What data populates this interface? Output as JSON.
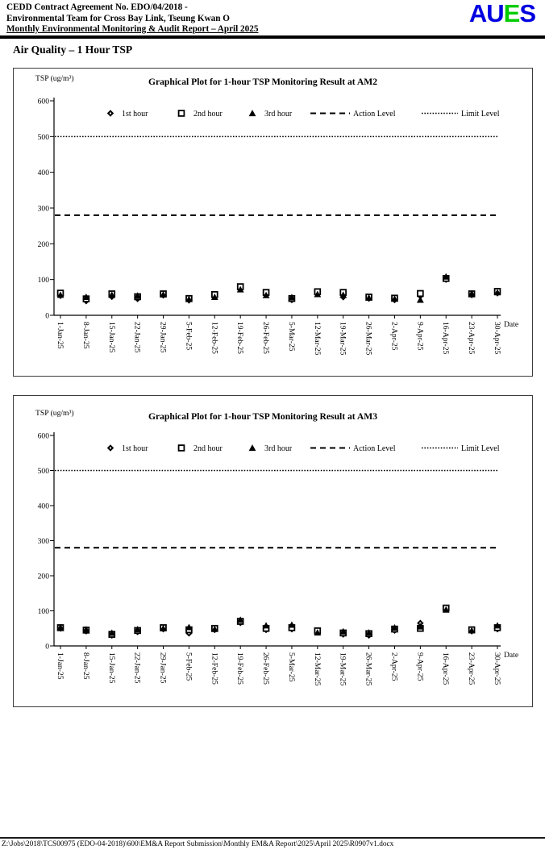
{
  "header": {
    "line1": "CEDD Contract Agreement No. EDO/04/2018 -",
    "line2": "Environmental Team for Cross Bay Link, Tseung Kwan O",
    "line3": "Monthly Environmental Monitoring & Audit Report – April 2025",
    "logo": {
      "letters": [
        {
          "char": "A",
          "color": "#0000E0"
        },
        {
          "char": "U",
          "color": "#0000E0"
        },
        {
          "char": "E",
          "color": "#00CC00"
        },
        {
          "char": "S",
          "color": "#0000E0"
        }
      ]
    }
  },
  "section_title": "Air Quality – 1 Hour TSP",
  "chart_data": [
    {
      "type": "scatter",
      "title": "Graphical Plot for 1-hour TSP Monitoring Result at AM2",
      "ylabel": "TSP (ug/m³)",
      "xlabel": "Date",
      "ylim": [
        0,
        600
      ],
      "ytick_step": 100,
      "grid": false,
      "legend_position": "top",
      "categories": [
        "1-Jan-25",
        "8-Jan-25",
        "15-Jan-25",
        "22-Jan-25",
        "29-Jan-25",
        "5-Feb-25",
        "12-Feb-25",
        "19-Feb-25",
        "26-Feb-25",
        "5-Mar-25",
        "12-Mar-25",
        "19-Mar-25",
        "26-Mar-25",
        "2-Apr-25",
        "9-Apr-25",
        "16-Apr-25",
        "23-Apr-25",
        "30-Apr-25"
      ],
      "series": [
        {
          "name": "1st hour",
          "marker": "diamond",
          "values": [
            55,
            40,
            52,
            46,
            56,
            42,
            54,
            76,
            59,
            43,
            61,
            51,
            47,
            43,
            54,
            100,
            57,
            62
          ]
        },
        {
          "name": "2nd hour",
          "marker": "square",
          "values": [
            62,
            46,
            60,
            52,
            60,
            47,
            58,
            80,
            64,
            47,
            66,
            64,
            51,
            48,
            61,
            103,
            60,
            67
          ]
        },
        {
          "name": "3rd hour",
          "marker": "triangle",
          "values": [
            57,
            51,
            57,
            55,
            58,
            45,
            51,
            72,
            56,
            50,
            59,
            57,
            49,
            46,
            43,
            108,
            61,
            64
          ]
        }
      ],
      "reference_lines": [
        {
          "name": "Action Level",
          "value": 280,
          "style": "dashed"
        },
        {
          "name": "Limit Level",
          "value": 500,
          "style": "dotted"
        }
      ]
    },
    {
      "type": "scatter",
      "title": "Graphical Plot for 1-hour TSP Monitoring Result at AM3",
      "ylabel": "TSP (ug/m³)",
      "xlabel": "Date",
      "ylim": [
        0,
        600
      ],
      "ytick_step": 100,
      "grid": false,
      "legend_position": "top",
      "categories": [
        "1-Jan-25",
        "8-Jan-25",
        "15-Jan-25",
        "22-Jan-25",
        "29-Jan-25",
        "5-Feb-25",
        "12-Feb-25",
        "19-Feb-25",
        "26-Feb-25",
        "5-Mar-25",
        "12-Mar-25",
        "19-Mar-25",
        "26-Mar-25",
        "2-Apr-25",
        "9-Apr-25",
        "16-Apr-25",
        "23-Apr-25",
        "30-Apr-25"
      ],
      "series": [
        {
          "name": "1st hour",
          "marker": "diamond",
          "values": [
            50,
            42,
            30,
            40,
            48,
            36,
            46,
            66,
            46,
            48,
            40,
            33,
            30,
            44,
            65,
            105,
            42,
            48
          ]
        },
        {
          "name": "2nd hour",
          "marker": "square",
          "values": [
            52,
            45,
            33,
            44,
            52,
            46,
            50,
            70,
            50,
            52,
            43,
            37,
            35,
            48,
            50,
            108,
            46,
            52
          ]
        },
        {
          "name": "3rd hour",
          "marker": "triangle",
          "values": [
            53,
            47,
            37,
            47,
            50,
            53,
            48,
            74,
            58,
            60,
            38,
            41,
            38,
            52,
            55,
            103,
            44,
            58
          ]
        }
      ],
      "reference_lines": [
        {
          "name": "Action Level",
          "value": 280,
          "style": "dashed"
        },
        {
          "name": "Limit Level",
          "value": 500,
          "style": "dotted"
        }
      ]
    }
  ],
  "footer": {
    "file_path": "Z:\\Jobs\\2018\\TCS00975 (EDO-04-2018)\\600\\EM&A Report Submission\\Monthly EM&A Report\\2025\\April 2025\\R0907v1.docx"
  }
}
